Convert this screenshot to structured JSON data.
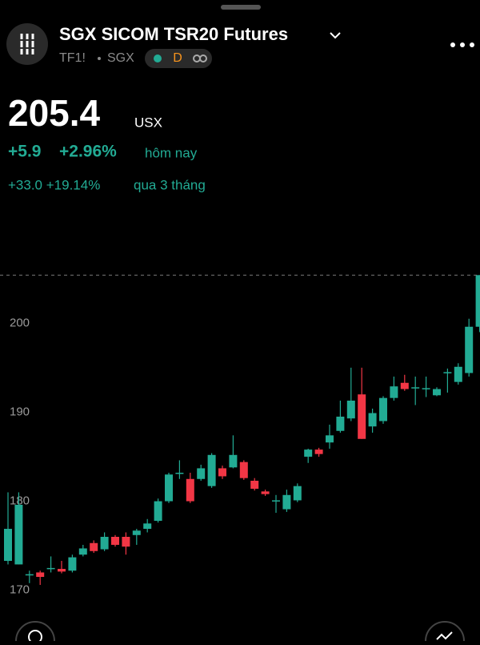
{
  "header": {
    "title": "SGX SICOM TSR20 Futures",
    "symbol": "TF1!",
    "exchange": "SGX",
    "interval": "D",
    "price": "205.4",
    "currency": "USX",
    "change_abs": "+5.9",
    "change_pct": "+2.96%",
    "change_period": "hôm nay",
    "range_change": "+33.0 +19.14%",
    "range_period": "qua 3 tháng"
  },
  "chart_data": {
    "type": "candlestick",
    "open": [
      173.3,
      172.9,
      171.7,
      172.0,
      172.4,
      172.4,
      172.2,
      174.0,
      175.3,
      174.6,
      176.0,
      176.0,
      176.2,
      176.9,
      177.8,
      180.0,
      183.1,
      182.5,
      182.5,
      181.7,
      183.7,
      183.8,
      184.4,
      182.3,
      181.1,
      180.0,
      179.1,
      180.1,
      185.0,
      185.8,
      186.6,
      187.9,
      189.3,
      192.0,
      188.4,
      189.0,
      191.6,
      193.3,
      192.8,
      192.6,
      191.9,
      194.4,
      193.4,
      194.4,
      199.6
    ],
    "high": [
      181.0,
      181.0,
      172.2,
      172.2,
      173.8,
      173.3,
      174.0,
      175.1,
      175.6,
      176.5,
      176.2,
      176.5,
      176.9,
      178.0,
      180.3,
      183.2,
      184.6,
      183.2,
      184.1,
      185.4,
      184.0,
      187.4,
      184.6,
      182.6,
      181.3,
      180.7,
      181.3,
      182.0,
      185.9,
      186.0,
      188.6,
      191.3,
      195.0,
      195.0,
      190.4,
      191.8,
      194.0,
      194.2,
      194.0,
      194.0,
      192.8,
      194.9,
      195.5,
      200.5,
      205.4
    ],
    "low": [
      172.9,
      172.9,
      170.8,
      170.6,
      172.0,
      171.9,
      172.0,
      173.8,
      174.2,
      174.4,
      174.9,
      174.0,
      175.1,
      176.5,
      177.6,
      179.8,
      182.5,
      179.8,
      182.3,
      181.5,
      182.5,
      183.7,
      182.4,
      181.2,
      180.6,
      178.7,
      178.8,
      179.9,
      184.3,
      185.0,
      185.9,
      187.7,
      189.0,
      187.0,
      187.7,
      188.7,
      191.3,
      192.4,
      190.8,
      191.7,
      191.8,
      192.2,
      193.1,
      194.0,
      199.0
    ],
    "close": [
      176.9,
      179.6,
      171.8,
      171.5,
      172.5,
      172.1,
      173.7,
      174.7,
      174.4,
      176.0,
      175.1,
      174.9,
      176.7,
      177.5,
      180.0,
      183.0,
      183.2,
      180.0,
      183.7,
      185.2,
      182.8,
      185.2,
      182.6,
      181.4,
      180.8,
      180.1,
      180.7,
      181.7,
      185.8,
      185.3,
      187.4,
      189.5,
      191.3,
      187.0,
      189.9,
      191.6,
      192.9,
      192.6,
      192.8,
      192.7,
      192.6,
      194.5,
      195.1,
      199.6,
      205.4
    ],
    "up_color": "#22ab94",
    "down_color": "#f23645",
    "ylim": [
      166.1,
      206.6
    ],
    "yticks": [
      170,
      180,
      190,
      200
    ],
    "price_line": true
  }
}
